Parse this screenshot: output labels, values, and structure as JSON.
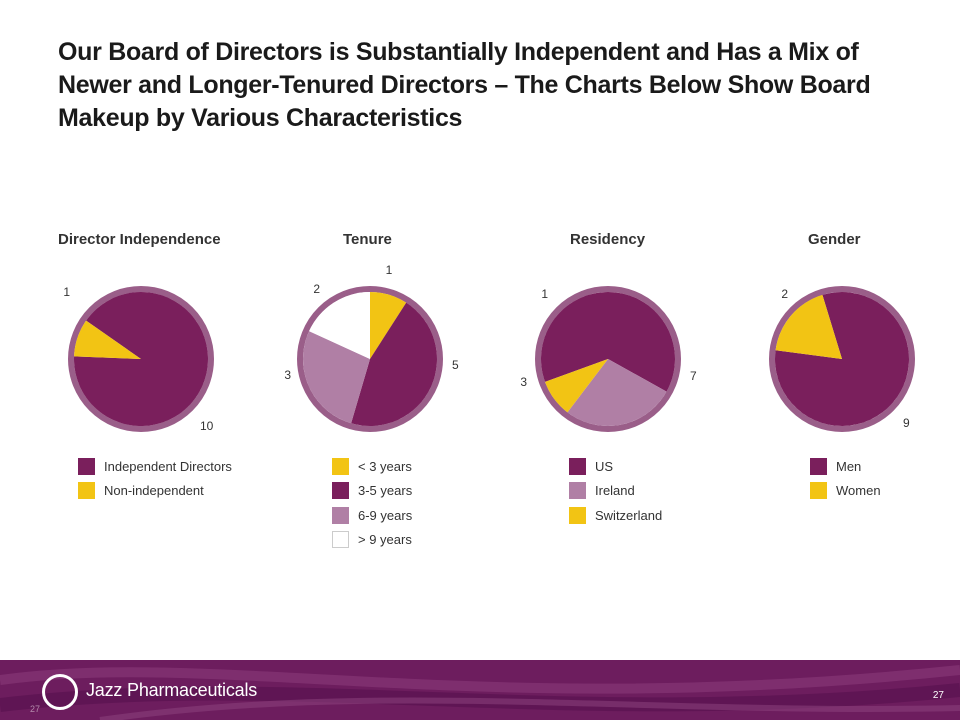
{
  "title": {
    "line1": "Our Board of Directors is Substantially Independent and Has a Mix of",
    "line2": "Newer and Longer-Tenured Directors – The Charts Below Show Board",
    "line3": "Makeup by Various Characteristics"
  },
  "colors": {
    "purple": "#7a1f5c",
    "purple_rim": "#9a5e89",
    "yellow": "#f2c414",
    "light_purple": "#b07fa5",
    "white": "#ffffff",
    "footer": "#6d1d5e"
  },
  "chart_data": [
    {
      "type": "pie",
      "title": "Director Independence",
      "slices": [
        {
          "label": "Independent Directors",
          "value": 10,
          "color": "#7a1f5c"
        },
        {
          "label": "Non-independent",
          "value": 1,
          "color": "#f2c414"
        }
      ]
    },
    {
      "type": "pie",
      "title": "Tenure",
      "slices": [
        {
          "label": "< 3 years",
          "value": 1,
          "color": "#f2c414"
        },
        {
          "label": "3-5 years",
          "value": 5,
          "color": "#7a1f5c"
        },
        {
          "label": "6-9 years",
          "value": 3,
          "color": "#b07fa5"
        },
        {
          "label": "> 9 years",
          "value": 2,
          "color": "#ffffff"
        }
      ]
    },
    {
      "type": "pie",
      "title": "Residency",
      "slices": [
        {
          "label": "US",
          "value": 7,
          "color": "#7a1f5c"
        },
        {
          "label": "Ireland",
          "value": 3,
          "color": "#b07fa5"
        },
        {
          "label": "Switzerland",
          "value": 1,
          "color": "#f2c414"
        }
      ]
    },
    {
      "type": "pie",
      "title": "Gender",
      "slices": [
        {
          "label": "Men",
          "value": 9,
          "color": "#7a1f5c"
        },
        {
          "label": "Women",
          "value": 2,
          "color": "#f2c414"
        }
      ]
    }
  ],
  "footer": {
    "brand": "Jazz Pharmaceuticals",
    "page_number": "27",
    "page_number_faint": "27"
  }
}
